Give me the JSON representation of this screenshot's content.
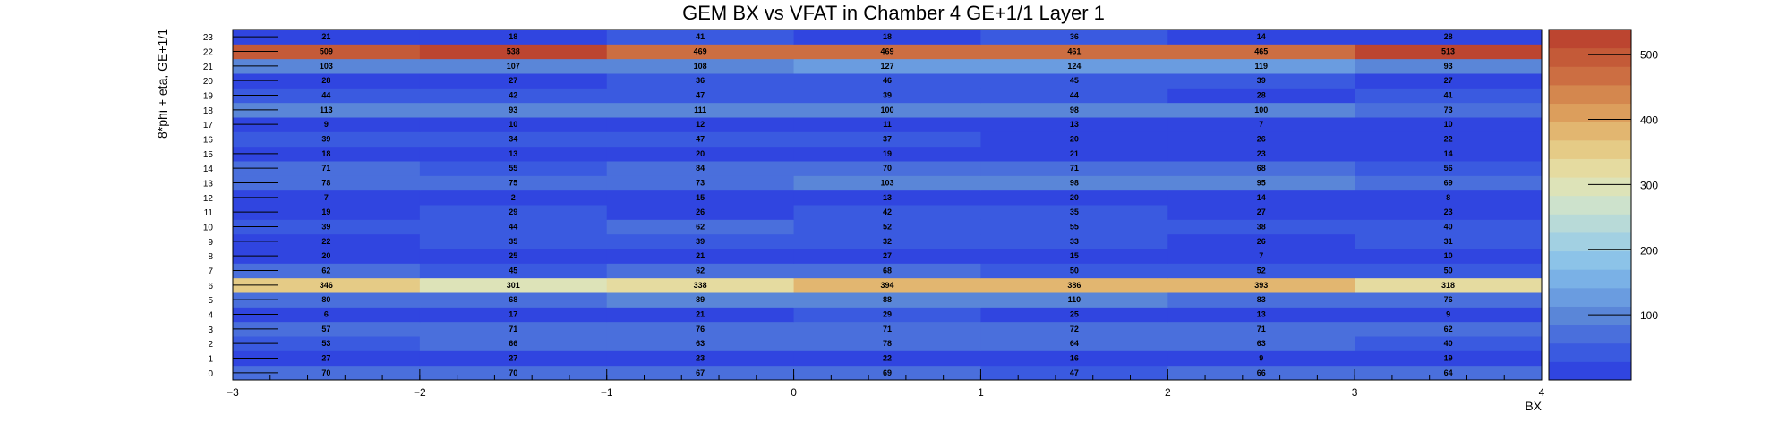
{
  "chart_data": {
    "type": "heatmap",
    "title": "GEM BX vs VFAT in Chamber 4 GE+1/1 Layer 1",
    "xlabel": "BX",
    "ylabel": "8*phi + eta, GE+1/1",
    "xlim": [
      -3,
      4
    ],
    "x_ticks": [
      "−3",
      "−2",
      "−1",
      "0",
      "1",
      "2",
      "3",
      "4"
    ],
    "x_bins": [
      -3,
      -2,
      -1,
      0,
      1,
      2,
      3
    ],
    "y_labels": [
      "0",
      "1",
      "2",
      "3",
      "4",
      "5",
      "6",
      "7",
      "8",
      "9",
      "10",
      "11",
      "12",
      "13",
      "14",
      "15",
      "16",
      "17",
      "18",
      "19",
      "20",
      "21",
      "22",
      "23"
    ],
    "values": [
      [
        70,
        70,
        67,
        69,
        47,
        66,
        64
      ],
      [
        27,
        27,
        23,
        22,
        16,
        9,
        19
      ],
      [
        53,
        66,
        63,
        78,
        64,
        63,
        40
      ],
      [
        57,
        71,
        76,
        71,
        72,
        71,
        62
      ],
      [
        6,
        17,
        21,
        29,
        25,
        13,
        9
      ],
      [
        80,
        68,
        89,
        88,
        110,
        83,
        76
      ],
      [
        346,
        301,
        338,
        394,
        386,
        393,
        318
      ],
      [
        62,
        45,
        62,
        68,
        50,
        52,
        50
      ],
      [
        20,
        25,
        21,
        27,
        15,
        7,
        10
      ],
      [
        22,
        35,
        39,
        32,
        33,
        26,
        31
      ],
      [
        39,
        44,
        62,
        52,
        55,
        38,
        40
      ],
      [
        19,
        29,
        26,
        42,
        35,
        27,
        23
      ],
      [
        7,
        2,
        15,
        13,
        20,
        14,
        8
      ],
      [
        78,
        75,
        73,
        103,
        98,
        95,
        69
      ],
      [
        71,
        55,
        84,
        70,
        71,
        68,
        56
      ],
      [
        18,
        13,
        20,
        19,
        21,
        23,
        14
      ],
      [
        39,
        34,
        47,
        37,
        20,
        26,
        22
      ],
      [
        9,
        10,
        12,
        11,
        13,
        7,
        10
      ],
      [
        113,
        93,
        111,
        100,
        98,
        100,
        73
      ],
      [
        44,
        42,
        47,
        39,
        44,
        28,
        41
      ],
      [
        28,
        27,
        36,
        46,
        45,
        39,
        27
      ],
      [
        103,
        107,
        108,
        127,
        124,
        119,
        93
      ],
      [
        509,
        538,
        469,
        469,
        461,
        465,
        513
      ],
      [
        21,
        18,
        41,
        18,
        36,
        14,
        28
      ]
    ],
    "zlim": [
      0,
      538
    ],
    "colorbar_ticks": [
      "100",
      "200",
      "300",
      "400",
      "500"
    ],
    "colorscale": [
      "#3045e0",
      "#3a5ae0",
      "#4a6fdc",
      "#5a86d8",
      "#6a9ce0",
      "#7ab1e6",
      "#8cc3e8",
      "#a2d0e2",
      "#b8dad8",
      "#cde2cc",
      "#dde3b8",
      "#e5dba0",
      "#e5cb86",
      "#e2b670",
      "#dc9e5c",
      "#d4874e",
      "#cc6e42",
      "#c45a38",
      "#bc4530"
    ],
    "grid": false,
    "legend": "none"
  }
}
